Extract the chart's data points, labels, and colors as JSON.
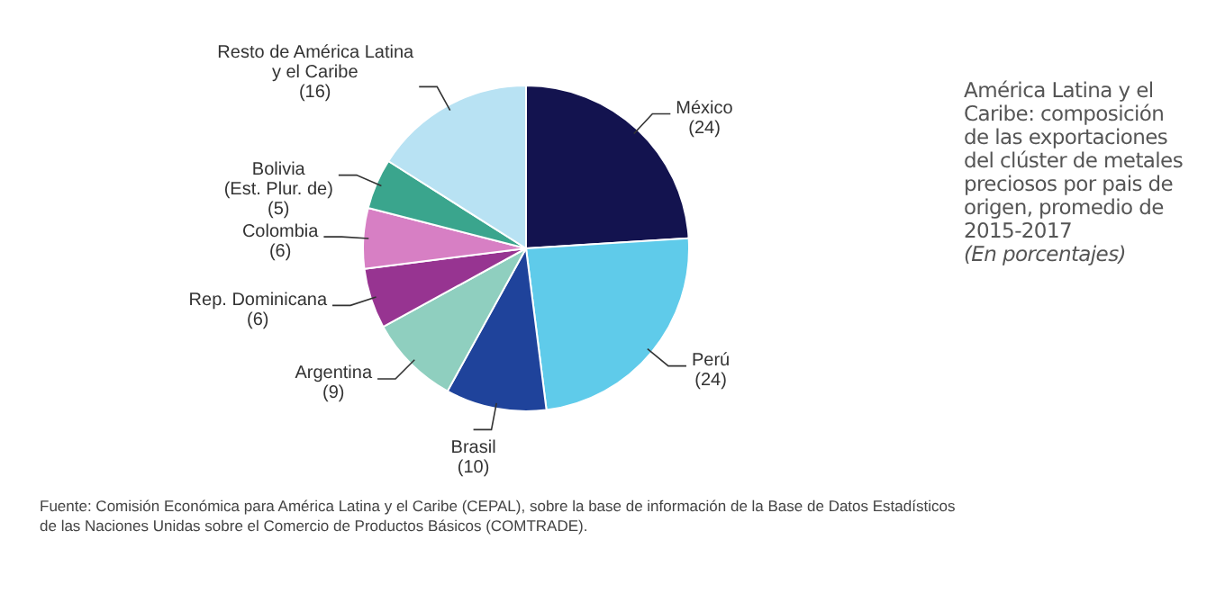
{
  "chart_data": {
    "type": "pie",
    "title": "América Latina y el Caribe: composición de las exportaciones del clúster de metales preciosos por pais de origen, promedio de 2015-2017",
    "subtitle": "(En porcentajes)",
    "categories": [
      "México",
      "Perú",
      "Brasil",
      "Argentina",
      "Rep. Dominicana",
      "Colombia",
      "Bolivia\n(Est. Plur. de)",
      "Resto de América Latina\ny el Caribe"
    ],
    "values": [
      24,
      24,
      10,
      9,
      6,
      6,
      5,
      16
    ],
    "colors": [
      "#13134f",
      "#5fcbea",
      "#1f439b",
      "#8fcfbf",
      "#973491",
      "#d77fc4",
      "#3aa58d",
      "#b8e2f3"
    ],
    "value_labels": [
      "(24)",
      "(24)",
      "(10)",
      "(9)",
      "(6)",
      "(6)",
      "(5)",
      "(16)"
    ],
    "annotations": [
      "Fuente: Comisión Económica para América Latina y el Caribe (CEPAL), sobre la base de información de la Base de Datos Estadísticos de las Naciones Unidas sobre el Comercio de Productos Básicos (COMTRADE)."
    ],
    "legend": false
  }
}
